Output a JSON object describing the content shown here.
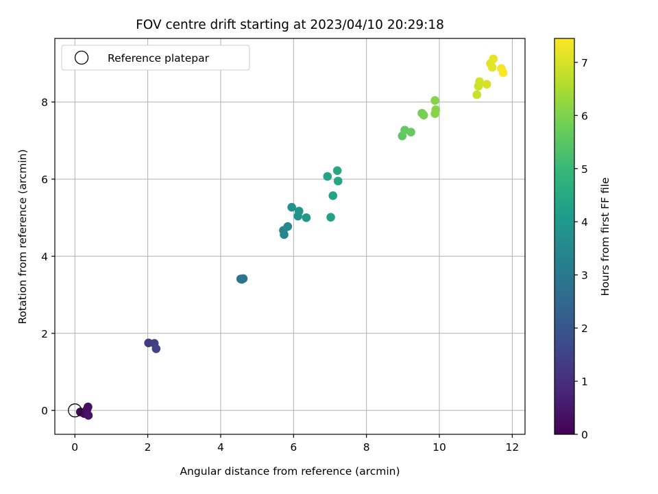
{
  "chart_data": {
    "type": "scatter",
    "title": "FOV centre drift starting at 2023/04/10 20:29:18",
    "xlabel": "Angular distance from reference (arcmin)",
    "ylabel": "Rotation from reference (arcmin)",
    "xlim": [
      -0.55,
      12.35
    ],
    "ylim": [
      -0.62,
      9.65
    ],
    "xticks": [
      0,
      2,
      4,
      6,
      8,
      10,
      12
    ],
    "yticks": [
      0,
      2,
      4,
      6,
      8
    ],
    "grid": true,
    "legend": {
      "position": "top-left",
      "entries": [
        "Reference platepar"
      ]
    },
    "reference_point": {
      "x": 0,
      "y": 0,
      "label": "Reference platepar"
    },
    "colorbar": {
      "label": "Hours from first FF file",
      "range": [
        0,
        7.45
      ],
      "ticks": [
        0,
        1,
        2,
        3,
        4,
        5,
        6,
        7
      ],
      "colormap": "viridis",
      "colors": [
        "#440154",
        "#482878",
        "#3e4989",
        "#31688e",
        "#26828e",
        "#1f9e89",
        "#35b779",
        "#6ece58",
        "#b5de2b",
        "#fde725"
      ]
    },
    "points": [
      {
        "x": 0.15,
        "y": -0.04,
        "t": 0.05
      },
      {
        "x": 0.25,
        "y": -0.08,
        "t": 0.15
      },
      {
        "x": 0.33,
        "y": 0.02,
        "t": 0.25
      },
      {
        "x": 0.36,
        "y": 0.09,
        "t": 0.3
      },
      {
        "x": 0.37,
        "y": -0.13,
        "t": 0.4
      },
      {
        "x": 2.02,
        "y": 1.75,
        "t": 1.3
      },
      {
        "x": 2.18,
        "y": 1.74,
        "t": 1.4
      },
      {
        "x": 2.23,
        "y": 1.6,
        "t": 1.5
      },
      {
        "x": 4.55,
        "y": 3.41,
        "t": 2.75
      },
      {
        "x": 4.62,
        "y": 3.42,
        "t": 2.8
      },
      {
        "x": 4.58,
        "y": 3.4,
        "t": 2.85
      },
      {
        "x": 5.72,
        "y": 4.67,
        "t": 3.4
      },
      {
        "x": 5.74,
        "y": 4.56,
        "t": 3.45
      },
      {
        "x": 5.84,
        "y": 4.77,
        "t": 3.5
      },
      {
        "x": 5.95,
        "y": 5.27,
        "t": 3.75
      },
      {
        "x": 6.12,
        "y": 5.04,
        "t": 3.8
      },
      {
        "x": 6.15,
        "y": 5.17,
        "t": 3.85
      },
      {
        "x": 6.35,
        "y": 5.0,
        "t": 3.95
      },
      {
        "x": 6.93,
        "y": 6.07,
        "t": 4.35
      },
      {
        "x": 7.02,
        "y": 5.01,
        "t": 4.25
      },
      {
        "x": 7.08,
        "y": 5.57,
        "t": 4.3
      },
      {
        "x": 7.2,
        "y": 6.22,
        "t": 4.45
      },
      {
        "x": 7.22,
        "y": 5.95,
        "t": 4.4
      },
      {
        "x": 8.98,
        "y": 7.12,
        "t": 5.55
      },
      {
        "x": 9.05,
        "y": 7.27,
        "t": 5.6
      },
      {
        "x": 9.22,
        "y": 7.22,
        "t": 5.65
      },
      {
        "x": 9.52,
        "y": 7.71,
        "t": 5.85
      },
      {
        "x": 9.57,
        "y": 7.66,
        "t": 5.9
      },
      {
        "x": 9.88,
        "y": 8.04,
        "t": 6.05
      },
      {
        "x": 9.9,
        "y": 7.8,
        "t": 6.1
      },
      {
        "x": 9.88,
        "y": 7.7,
        "t": 6.1
      },
      {
        "x": 11.03,
        "y": 8.19,
        "t": 6.85
      },
      {
        "x": 11.07,
        "y": 8.41,
        "t": 6.9
      },
      {
        "x": 11.1,
        "y": 8.53,
        "t": 6.95
      },
      {
        "x": 11.3,
        "y": 8.46,
        "t": 7.0
      },
      {
        "x": 11.4,
        "y": 9.0,
        "t": 7.1
      },
      {
        "x": 11.45,
        "y": 8.9,
        "t": 7.15
      },
      {
        "x": 11.48,
        "y": 9.12,
        "t": 7.2
      },
      {
        "x": 11.7,
        "y": 8.87,
        "t": 7.35
      },
      {
        "x": 11.75,
        "y": 8.76,
        "t": 7.42
      }
    ]
  }
}
